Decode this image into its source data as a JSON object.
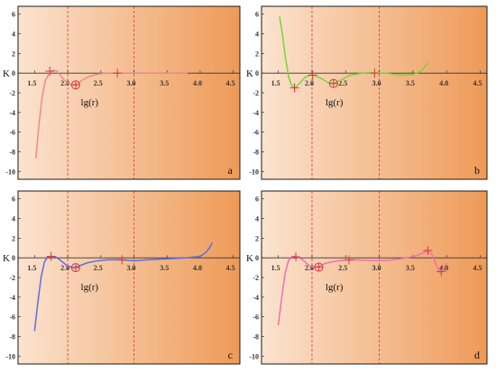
{
  "colors": {
    "gradient_start": "#fbe3cf",
    "gradient_end": "#ee9a57",
    "border": "#1a1a1a",
    "dashed_line": "#e0444f",
    "marker": "#d9363e"
  },
  "chart_data": [
    {
      "type": "line",
      "panel_label": "a",
      "ylabel": "K",
      "xlabel": "lg(r)",
      "x_ticks": [
        "1.5",
        "2.0",
        "2.5",
        "3.0",
        "3.5",
        "4.0",
        "4.5"
      ],
      "y_ticks": [
        "6",
        "4",
        "2",
        "0",
        "-2",
        "-4",
        "-6",
        "-8",
        "-10"
      ],
      "xlim": [
        1.25,
        4.6
      ],
      "ylim": [
        -10.8,
        6.8
      ],
      "vlines": [
        2.0,
        3.0
      ],
      "grid": false,
      "series": [
        {
          "color": "#ee8a8e",
          "x": [
            1.52,
            1.56,
            1.61,
            1.66,
            1.72,
            1.78,
            1.84,
            1.9,
            1.96,
            2.02,
            2.08,
            2.14,
            2.22,
            2.32,
            2.45,
            2.6,
            2.75,
            2.95,
            3.2,
            3.5,
            3.8
          ],
          "y": [
            -8.6,
            -5.6,
            -2.6,
            -0.8,
            -0.05,
            0.3,
            0.18,
            -0.3,
            -0.8,
            -1.1,
            -1.2,
            -1.1,
            -0.7,
            -0.35,
            -0.1,
            0.0,
            0.0,
            0.0,
            0.0,
            0.0,
            0.0
          ]
        }
      ],
      "markers": [
        {
          "x": 1.73,
          "y": 0.2,
          "style": "plus"
        },
        {
          "x": 2.12,
          "y": -1.2,
          "style": "circle-plus"
        },
        {
          "x": 2.75,
          "y": 0.0,
          "style": "plus"
        }
      ]
    },
    {
      "type": "line",
      "panel_label": "b",
      "ylabel": "K",
      "xlabel": "lg(r)",
      "x_ticks": [
        "1.5",
        "2.0",
        "2.5",
        "3.0",
        "3.5",
        "4.0",
        "4.5"
      ],
      "y_ticks": [
        "6",
        "4",
        "2",
        "0",
        "-2",
        "-4",
        "-6",
        "-8",
        "-10"
      ],
      "xlim": [
        1.25,
        4.6
      ],
      "ylim": [
        -10.8,
        6.8
      ],
      "vlines": [
        2.0,
        3.0
      ],
      "grid": false,
      "series": [
        {
          "color": "#7ad43d",
          "x": [
            1.52,
            1.56,
            1.6,
            1.65,
            1.7,
            1.75,
            1.82,
            1.9,
            1.98,
            2.05,
            2.15,
            2.25,
            2.32,
            2.42,
            2.55,
            2.7,
            2.85,
            2.95,
            3.1,
            3.3,
            3.5,
            3.62,
            3.72
          ],
          "y": [
            5.7,
            4.0,
            1.8,
            -0.3,
            -1.3,
            -1.5,
            -1.0,
            -0.4,
            -0.2,
            -0.25,
            -0.6,
            -1.0,
            -1.05,
            -0.75,
            -0.25,
            -0.05,
            0.05,
            0.0,
            0.0,
            -0.2,
            -0.15,
            0.2,
            1.0
          ]
        }
      ],
      "markers": [
        {
          "x": 1.74,
          "y": -1.5,
          "style": "plus"
        },
        {
          "x": 2.01,
          "y": -0.2,
          "style": "plus"
        },
        {
          "x": 2.32,
          "y": -1.05,
          "style": "circle-plus"
        },
        {
          "x": 2.93,
          "y": 0.0,
          "style": "plus"
        }
      ]
    },
    {
      "type": "line",
      "panel_label": "c",
      "ylabel": "K",
      "xlabel": "lg(r)",
      "x_ticks": [
        "1.5",
        "2.0",
        "2.5",
        "3.0",
        "3.5",
        "4.0",
        "4.5"
      ],
      "y_ticks": [
        "6",
        "4",
        "2",
        "0",
        "-2",
        "-4",
        "-6",
        "-8",
        "-10"
      ],
      "xlim": [
        1.25,
        4.6
      ],
      "ylim": [
        -10.8,
        6.8
      ],
      "vlines": [
        2.0,
        3.0
      ],
      "grid": false,
      "series": [
        {
          "color": "#5a6ee6",
          "x": [
            1.5,
            1.55,
            1.6,
            1.65,
            1.7,
            1.76,
            1.82,
            1.9,
            1.98,
            2.05,
            2.1,
            2.18,
            2.3,
            2.45,
            2.6,
            2.8,
            3.0,
            3.2,
            3.5,
            3.8,
            4.0,
            4.08,
            4.14,
            4.18
          ],
          "y": [
            -7.4,
            -4.5,
            -1.9,
            -0.4,
            0.1,
            0.15,
            0.1,
            -0.3,
            -0.75,
            -0.95,
            -1.0,
            -0.8,
            -0.5,
            -0.3,
            -0.2,
            -0.2,
            -0.3,
            -0.2,
            -0.1,
            0.0,
            0.15,
            0.5,
            1.0,
            1.5
          ]
        }
      ],
      "markers": [
        {
          "x": 1.75,
          "y": 0.15,
          "style": "plus"
        },
        {
          "x": 2.12,
          "y": -1.0,
          "style": "circle-plus"
        },
        {
          "x": 2.82,
          "y": -0.2,
          "style": "plus"
        }
      ]
    },
    {
      "type": "line",
      "panel_label": "d",
      "ylabel": "K",
      "xlabel": "lg(r)",
      "x_ticks": [
        "1.5",
        "2.0",
        "2.5",
        "3.0",
        "3.5",
        "4.0",
        "4.5"
      ],
      "y_ticks": [
        "6",
        "4",
        "2",
        "0",
        "-2",
        "-4",
        "-6",
        "-8",
        "-10"
      ],
      "xlim": [
        1.25,
        4.6
      ],
      "ylim": [
        -10.8,
        6.8
      ],
      "vlines": [
        2.0,
        3.0
      ],
      "grid": false,
      "series": [
        {
          "color": "#ee6fb1",
          "x": [
            1.5,
            1.55,
            1.6,
            1.65,
            1.7,
            1.75,
            1.8,
            1.88,
            1.95,
            2.02,
            2.1,
            2.18,
            2.3,
            2.45,
            2.6,
            2.8,
            3.0,
            3.2,
            3.4,
            3.55,
            3.65,
            3.72,
            3.78,
            3.84,
            3.9,
            3.95,
            4.0
          ],
          "y": [
            -6.8,
            -4.0,
            -1.6,
            -0.3,
            0.1,
            0.15,
            0.05,
            -0.3,
            -0.75,
            -0.95,
            -0.9,
            -0.6,
            -0.4,
            -0.25,
            -0.2,
            -0.25,
            -0.3,
            -0.2,
            0.0,
            0.2,
            0.5,
            0.75,
            0.4,
            -0.6,
            -1.5,
            -1.1,
            -0.6
          ]
        }
      ],
      "markers": [
        {
          "x": 1.76,
          "y": 0.1,
          "style": "plus"
        },
        {
          "x": 2.1,
          "y": -0.95,
          "style": "circle-plus"
        },
        {
          "x": 2.55,
          "y": -0.2,
          "style": "plus"
        },
        {
          "x": 3.72,
          "y": 0.75,
          "style": "plus"
        },
        {
          "x": 3.92,
          "y": -1.4,
          "style": "plus"
        }
      ]
    }
  ]
}
